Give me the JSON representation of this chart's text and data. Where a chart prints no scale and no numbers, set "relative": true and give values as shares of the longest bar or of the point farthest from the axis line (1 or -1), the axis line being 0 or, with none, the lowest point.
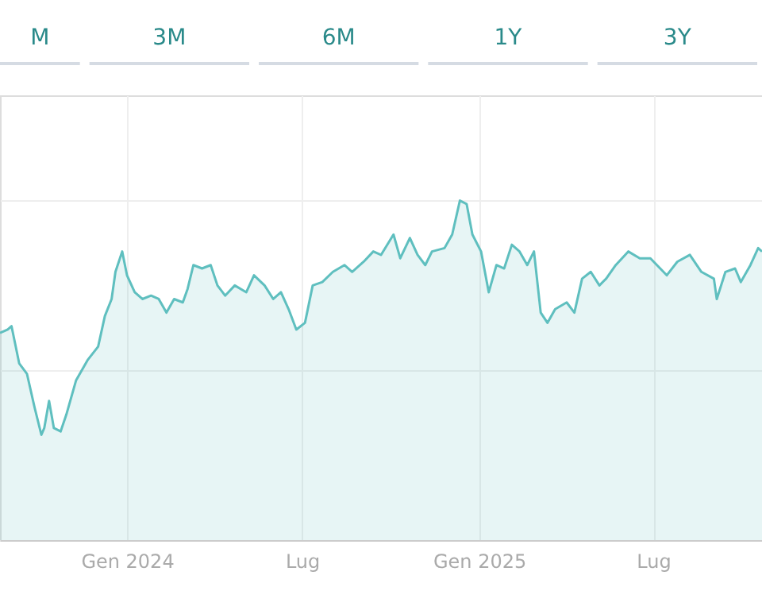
{
  "chart_data": {
    "type": "area",
    "relative": true,
    "grid": true,
    "annotations": [
      "M",
      "3M",
      "6M",
      "1Y",
      "3Y"
    ],
    "xlim": [
      "2023-08-22",
      "2025-10-22"
    ],
    "xticks": [
      {
        "value": "2024-01-01",
        "label": "Gen 2024"
      },
      {
        "value": "2024-07-01",
        "label": "Lug"
      },
      {
        "value": "2025-01-01",
        "label": "Gen 2025"
      },
      {
        "value": "2025-07-01",
        "label": "Lug"
      }
    ],
    "x": [
      "2023-08-22",
      "2023-08-30",
      "2023-09-03",
      "2023-09-11",
      "2023-09-19",
      "2023-09-27",
      "2023-10-04",
      "2023-10-07",
      "2023-10-12",
      "2023-10-17",
      "2023-10-24",
      "2023-10-30",
      "2023-11-09",
      "2023-11-21",
      "2023-12-02",
      "2023-12-09",
      "2023-12-16",
      "2023-12-20",
      "2023-12-27",
      "2024-01-01",
      "2024-01-09",
      "2024-01-17",
      "2024-01-26",
      "2024-02-03",
      "2024-02-11",
      "2024-02-19",
      "2024-02-28",
      "2024-03-04",
      "2024-03-10",
      "2024-03-19",
      "2024-03-28",
      "2024-04-04",
      "2024-04-12",
      "2024-04-22",
      "2024-05-04",
      "2024-05-12",
      "2024-05-23",
      "2024-06-01",
      "2024-06-09",
      "2024-06-17",
      "2024-06-25",
      "2024-07-04",
      "2024-07-12",
      "2024-07-22",
      "2024-08-02",
      "2024-08-14",
      "2024-08-22",
      "2024-09-03",
      "2024-09-13",
      "2024-09-21",
      "2024-10-04",
      "2024-10-11",
      "2024-10-21",
      "2024-10-29",
      "2024-11-06",
      "2024-11-13",
      "2024-11-26",
      "2024-12-04",
      "2024-12-12",
      "2024-12-19",
      "2024-12-25",
      "2025-01-03",
      "2025-01-11",
      "2025-01-19",
      "2025-01-27",
      "2025-02-04",
      "2025-02-12",
      "2025-02-20",
      "2025-02-27",
      "2025-03-06",
      "2025-03-13",
      "2025-03-21",
      "2025-04-02",
      "2025-04-10",
      "2025-04-18",
      "2025-04-27",
      "2025-05-06",
      "2025-05-13",
      "2025-05-23",
      "2025-06-05",
      "2025-06-17",
      "2025-06-28",
      "2025-07-15",
      "2025-07-26",
      "2025-08-08",
      "2025-08-20",
      "2025-09-02",
      "2025-09-05",
      "2025-09-14",
      "2025-09-24",
      "2025-09-30",
      "2025-10-10",
      "2025-10-18",
      "2025-10-22"
    ],
    "series": [
      {
        "color": "#5fbfbf",
        "values": [
          0.61,
          0.62,
          0.63,
          0.52,
          0.49,
          0.39,
          0.31,
          0.33,
          0.41,
          0.33,
          0.32,
          0.37,
          0.47,
          0.53,
          0.57,
          0.66,
          0.71,
          0.79,
          0.85,
          0.78,
          0.73,
          0.71,
          0.72,
          0.71,
          0.67,
          0.71,
          0.7,
          0.74,
          0.81,
          0.8,
          0.81,
          0.75,
          0.72,
          0.75,
          0.73,
          0.78,
          0.75,
          0.71,
          0.73,
          0.68,
          0.62,
          0.64,
          0.75,
          0.76,
          0.79,
          0.81,
          0.79,
          0.82,
          0.85,
          0.84,
          0.9,
          0.83,
          0.89,
          0.84,
          0.81,
          0.85,
          0.86,
          0.9,
          1,
          0.99,
          0.9,
          0.85,
          0.73,
          0.81,
          0.8,
          0.87,
          0.85,
          0.81,
          0.85,
          0.67,
          0.64,
          0.68,
          0.7,
          0.67,
          0.77,
          0.79,
          0.75,
          0.77,
          0.81,
          0.85,
          0.83,
          0.83,
          0.78,
          0.82,
          0.84,
          0.79,
          0.77,
          0.71,
          0.79,
          0.8,
          0.76,
          0.81,
          0.86,
          0.85
        ]
      }
    ]
  }
}
